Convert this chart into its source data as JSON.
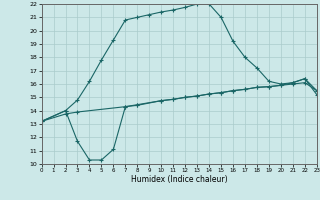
{
  "title": "",
  "xlabel": "Humidex (Indice chaleur)",
  "bg_color": "#cce8e8",
  "grid_color": "#aacccc",
  "line_color": "#1a6666",
  "xlim": [
    0,
    23
  ],
  "ylim": [
    10,
    22
  ],
  "xticks": [
    0,
    1,
    2,
    3,
    4,
    5,
    6,
    7,
    8,
    9,
    10,
    11,
    12,
    13,
    14,
    15,
    16,
    17,
    18,
    19,
    20,
    21,
    22,
    23
  ],
  "yticks": [
    10,
    11,
    12,
    13,
    14,
    15,
    16,
    17,
    18,
    19,
    20,
    21,
    22
  ],
  "curve1_x": [
    0,
    2,
    3,
    4,
    5,
    6,
    7,
    8,
    9,
    10,
    11,
    12,
    13,
    14,
    15,
    16,
    17,
    18,
    19,
    20,
    21,
    22,
    23
  ],
  "curve1_y": [
    13.2,
    14.0,
    14.8,
    16.2,
    17.8,
    19.3,
    20.8,
    21.0,
    21.2,
    21.4,
    21.55,
    21.75,
    22.0,
    22.0,
    21.0,
    19.2,
    18.0,
    17.2,
    16.2,
    16.0,
    16.1,
    16.4,
    15.2
  ],
  "curve2_x": [
    0,
    2,
    3,
    7,
    8,
    10,
    11,
    12,
    13,
    14,
    15,
    16,
    17,
    18,
    19,
    20,
    21,
    22,
    23
  ],
  "curve2_y": [
    13.2,
    13.75,
    13.9,
    14.3,
    14.45,
    14.75,
    14.85,
    15.0,
    15.1,
    15.25,
    15.35,
    15.5,
    15.6,
    15.75,
    15.8,
    15.9,
    16.0,
    16.1,
    15.5
  ],
  "curve3_x": [
    0,
    2,
    3,
    4,
    5,
    6,
    7,
    8,
    10,
    11,
    12,
    13,
    14,
    15,
    16,
    17,
    18,
    19,
    20,
    21,
    22,
    23
  ],
  "curve3_y": [
    13.2,
    14.0,
    11.7,
    10.3,
    10.3,
    11.1,
    14.3,
    14.4,
    14.75,
    14.85,
    15.0,
    15.1,
    15.25,
    15.35,
    15.5,
    15.6,
    15.75,
    15.8,
    15.9,
    16.1,
    16.4,
    15.5
  ]
}
